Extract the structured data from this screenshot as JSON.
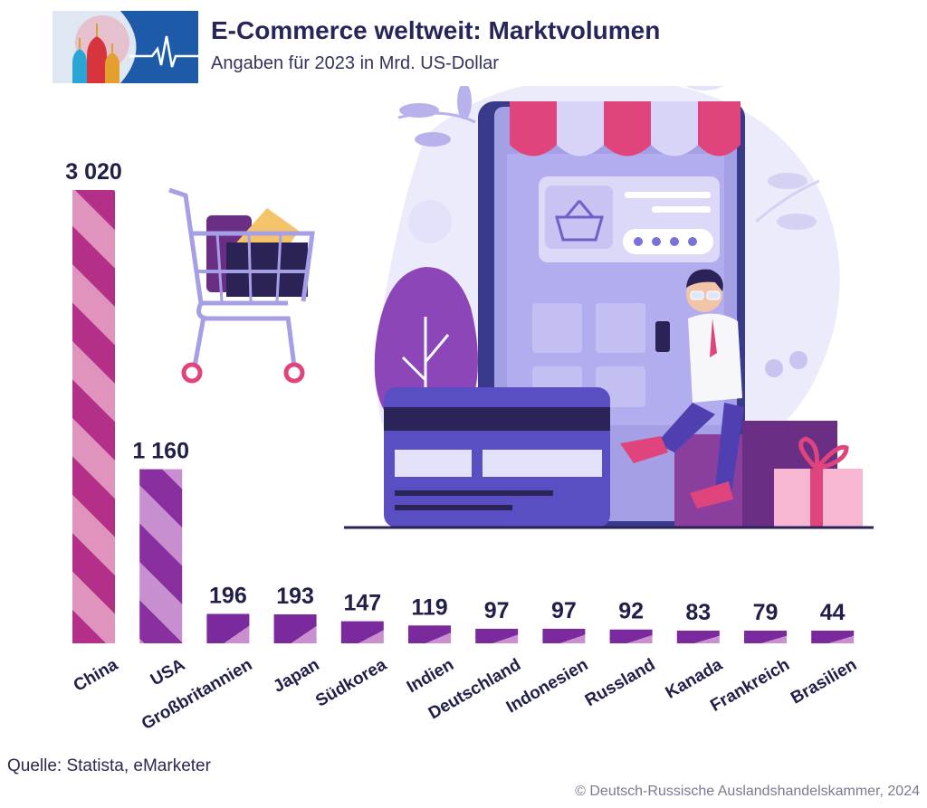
{
  "header": {
    "title": "E-Commerce weltweit: Marktvolumen",
    "subtitle": "Angaben für 2023 in Mrd. US-Dollar"
  },
  "footer": {
    "source": "Quelle: Statista, eMarketer",
    "copyright": "© Deutsch-Russische Auslandshandelskammer, 2024"
  },
  "colors": {
    "bar_dark": "#7b2a9e",
    "bar_light": "#c98fcf",
    "china_top": "#d6347e",
    "label_text": "#1f1f4a"
  },
  "illustration": {
    "icons": [
      "logo-kremlin-icon",
      "shopping-cart-icon",
      "smartphone-shop-icon",
      "credit-card-icon",
      "shopper-person-icon",
      "gift-box-icon"
    ]
  },
  "chart_data": {
    "type": "bar",
    "categories": [
      "China",
      "USA",
      "Großbritannien",
      "Japan",
      "Südkorea",
      "Indien",
      "Deutschland",
      "Indonesien",
      "Russland",
      "Kanada",
      "Frankreich",
      "Brasilien"
    ],
    "values": [
      3020,
      1160,
      196,
      193,
      147,
      119,
      97,
      97,
      92,
      83,
      79,
      44
    ],
    "value_labels": [
      "3 020",
      "1 160",
      "196",
      "193",
      "147",
      "119",
      "97",
      "97",
      "92",
      "83",
      "79",
      "44"
    ],
    "title": "E-Commerce weltweit: Marktvolumen",
    "subtitle": "Angaben für 2023 in Mrd. US-Dollar",
    "xlabel": "",
    "ylabel": "",
    "ylim": [
      0,
      3020
    ],
    "grid": false,
    "legend": "none"
  }
}
